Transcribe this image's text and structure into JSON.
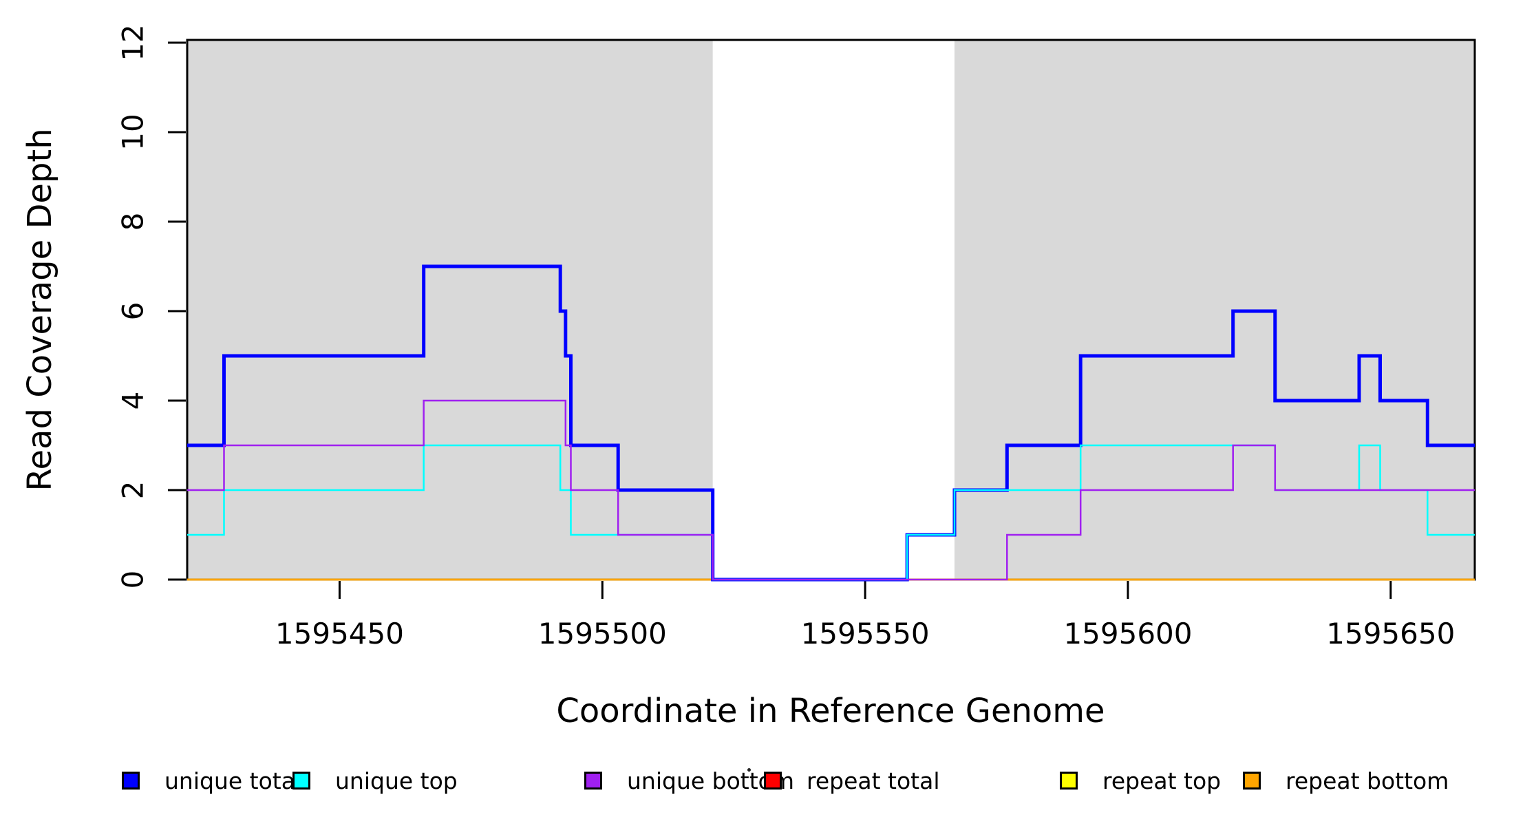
{
  "figure": {
    "xlabel": "Coordinate in Reference Genome",
    "ylabel": "Read Coverage Depth"
  },
  "chart_data": {
    "type": "line",
    "subtype": "step-coverage",
    "title": "",
    "xlabel": "Coordinate in Reference Genome",
    "ylabel": "Read Coverage Depth",
    "xlim": [
      1595421,
      1595666
    ],
    "ylim": [
      0,
      12
    ],
    "x_ticks": [
      1595450,
      1595500,
      1595550,
      1595600,
      1595650
    ],
    "x_tick_labels": [
      "1595450",
      "1595500",
      "1595550",
      "1595600",
      "1595650"
    ],
    "y_ticks": [
      0,
      2,
      4,
      6,
      8,
      10,
      12
    ],
    "y_tick_labels": [
      "0",
      "2",
      "4",
      "6",
      "8",
      "10",
      "12"
    ],
    "grid": false,
    "background_shading": {
      "color": "#d9d9d9",
      "regions": [
        [
          1595421,
          1595521
        ],
        [
          1595567,
          1595666
        ]
      ]
    },
    "series": [
      {
        "name": "repeat total",
        "color": "#ff0000",
        "width": 2.5,
        "points": [
          [
            1595421,
            0
          ],
          [
            1595666,
            0
          ]
        ]
      },
      {
        "name": "repeat top",
        "color": "#ffff00",
        "width": 2.5,
        "points": [
          [
            1595421,
            0
          ],
          [
            1595666,
            0
          ]
        ]
      },
      {
        "name": "repeat bottom",
        "color": "#ffa500",
        "width": 2.5,
        "points": [
          [
            1595421,
            0
          ],
          [
            1595666,
            0
          ]
        ]
      },
      {
        "name": "unique total",
        "color": "#0000ff",
        "width": 5,
        "points": [
          [
            1595421,
            3
          ],
          [
            1595428,
            5
          ],
          [
            1595466,
            7
          ],
          [
            1595492,
            6
          ],
          [
            1595493,
            5
          ],
          [
            1595494,
            3
          ],
          [
            1595503,
            2
          ],
          [
            1595521,
            0
          ],
          [
            1595558,
            1
          ],
          [
            1595567,
            2
          ],
          [
            1595577,
            3
          ],
          [
            1595591,
            5
          ],
          [
            1595620,
            6
          ],
          [
            1595628,
            4
          ],
          [
            1595644,
            5
          ],
          [
            1595648,
            4
          ],
          [
            1595657,
            3
          ],
          [
            1595666,
            3
          ]
        ]
      },
      {
        "name": "unique top",
        "color": "#00ffff",
        "width": 2.5,
        "points": [
          [
            1595421,
            1
          ],
          [
            1595428,
            2
          ],
          [
            1595466,
            3
          ],
          [
            1595492,
            2
          ],
          [
            1595494,
            1
          ],
          [
            1595521,
            0
          ],
          [
            1595558,
            1
          ],
          [
            1595567,
            2
          ],
          [
            1595591,
            3
          ],
          [
            1595628,
            2
          ],
          [
            1595644,
            3
          ],
          [
            1595648,
            2
          ],
          [
            1595657,
            1
          ],
          [
            1595666,
            1
          ]
        ]
      },
      {
        "name": "unique bottom",
        "color": "#a020f0",
        "width": 2.5,
        "points": [
          [
            1595421,
            2
          ],
          [
            1595428,
            3
          ],
          [
            1595466,
            4
          ],
          [
            1595493,
            3
          ],
          [
            1595494,
            2
          ],
          [
            1595503,
            1
          ],
          [
            1595521,
            0
          ],
          [
            1595577,
            1
          ],
          [
            1595591,
            2
          ],
          [
            1595620,
            3
          ],
          [
            1595628,
            2
          ],
          [
            1595666,
            2
          ]
        ]
      }
    ],
    "legend": {
      "position": "bottom",
      "items": [
        {
          "label": "unique total",
          "color": "#0000ff"
        },
        {
          "label": "unique top",
          "color": "#00ffff"
        },
        {
          "label": "unique bottom",
          "color": "#a020f0"
        },
        {
          "label": "repeat total",
          "color": "#ff0000"
        },
        {
          "label": "repeat top",
          "color": "#ffff00"
        },
        {
          "label": "repeat bottom",
          "color": "#ffa500"
        }
      ]
    }
  }
}
